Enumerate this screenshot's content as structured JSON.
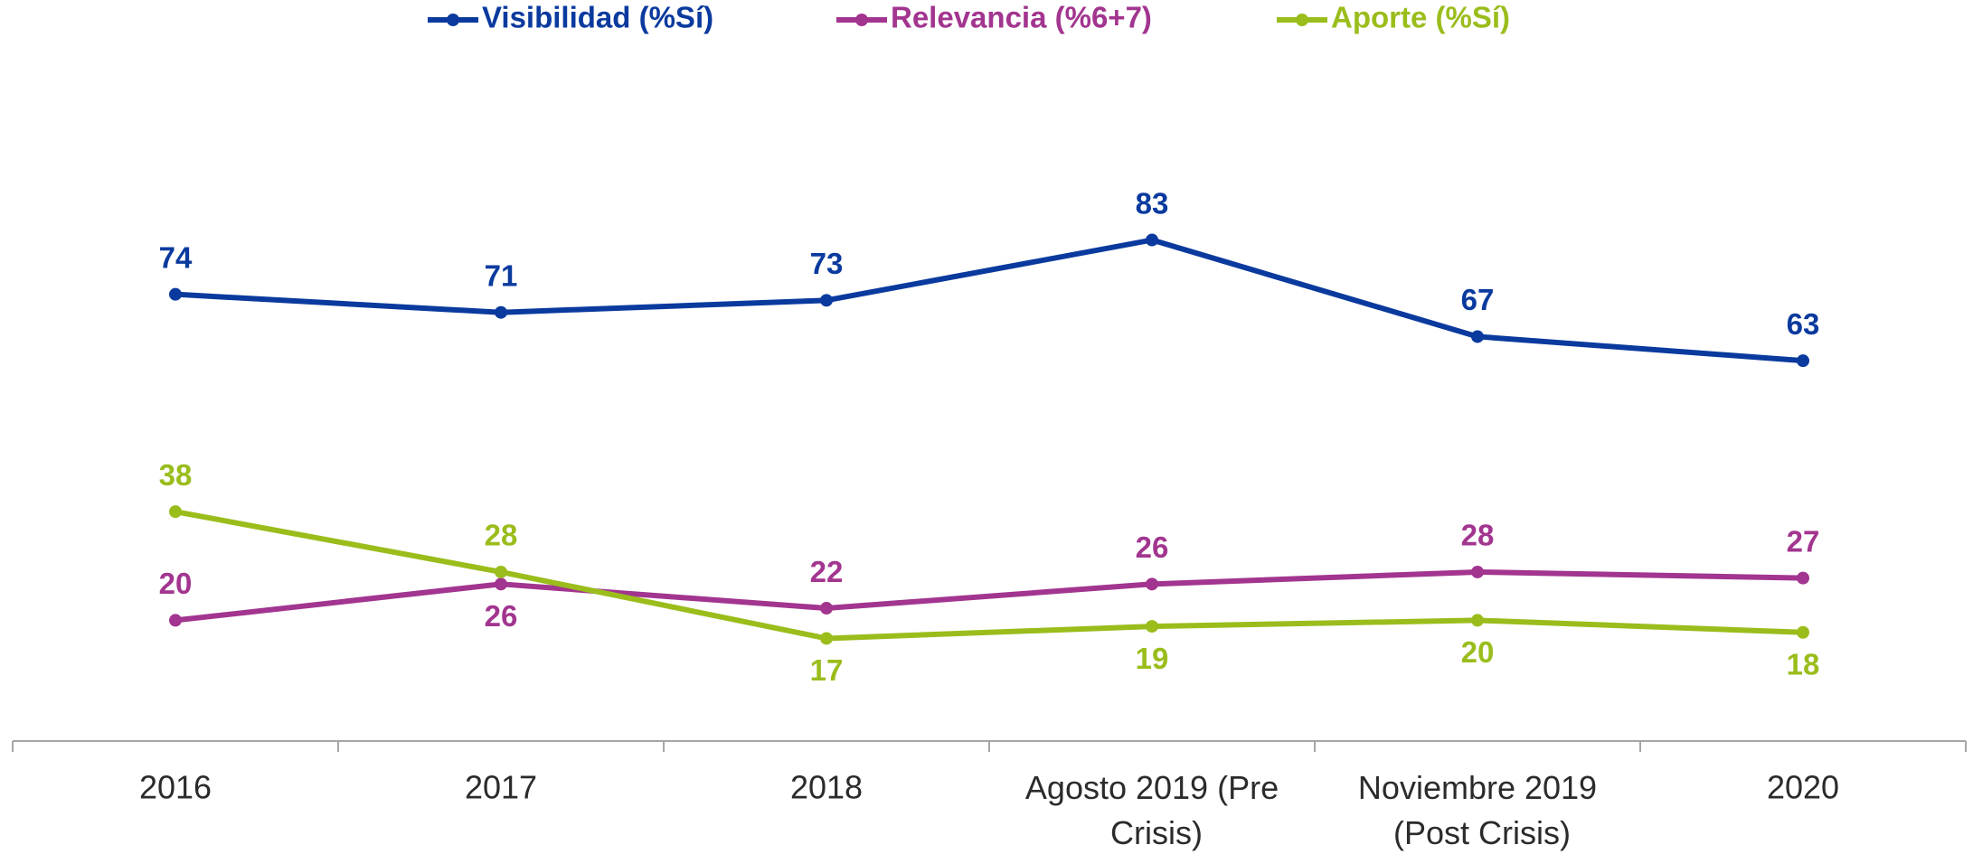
{
  "chart_data": {
    "type": "line",
    "categories": [
      "2016",
      "2017",
      "2018",
      "Agosto 2019 (Pre Crisis)",
      "Noviembre 2019 (Post Crisis)",
      "2020"
    ],
    "series": [
      {
        "name": "Visibilidad (%Sí)",
        "color": "#0a3a9e",
        "values": [
          74,
          71,
          73,
          83,
          67,
          63
        ]
      },
      {
        "name": "Relevancia (%6+7)",
        "color": "#a2358f",
        "values": [
          20,
          26,
          22,
          26,
          28,
          27
        ]
      },
      {
        "name": "Aporte (%Sí)",
        "color": "#9abd1c",
        "values": [
          38,
          28,
          17,
          19,
          20,
          18
        ]
      }
    ],
    "ylim": [
      0,
      100
    ],
    "legend": "top"
  }
}
